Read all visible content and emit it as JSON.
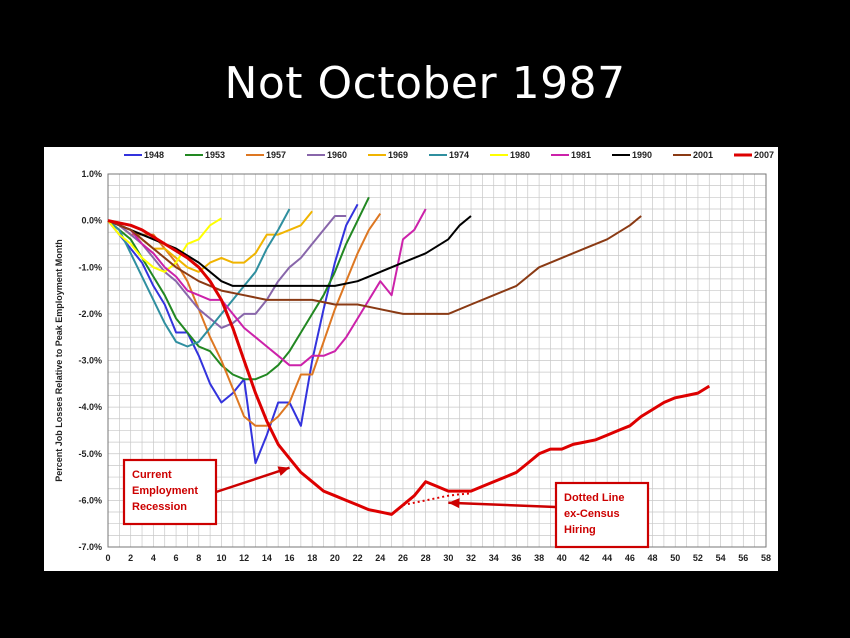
{
  "slide": {
    "title": "Not October 1987"
  },
  "chart_data": {
    "type": "line",
    "ylabel": "Percent Job Losses Relative to Peak Employment Month",
    "xlabel": "",
    "xlim": [
      0,
      58
    ],
    "ylim": [
      -7.0,
      1.0
    ],
    "x_ticks": [
      0,
      2,
      4,
      6,
      8,
      10,
      12,
      14,
      16,
      18,
      20,
      22,
      24,
      26,
      28,
      30,
      32,
      34,
      36,
      38,
      40,
      42,
      44,
      46,
      48,
      50,
      52,
      54,
      56,
      58
    ],
    "x_tick_labels": [
      "0",
      "2",
      "4",
      "6",
      "8",
      "10",
      "12",
      "14",
      "16",
      "18",
      "20",
      "22",
      "24",
      "26",
      "28",
      "30",
      "32",
      "34",
      "36",
      "38",
      "40",
      "42",
      "44",
      "46",
      "48",
      "50",
      "52",
      "54",
      "56",
      "58"
    ],
    "y_ticks": [
      1.0,
      0.0,
      -1.0,
      -2.0,
      -3.0,
      -4.0,
      -5.0,
      -6.0,
      -7.0
    ],
    "y_tick_labels": [
      "1.0%",
      "0.0%",
      "-1.0%",
      "-2.0%",
      "-3.0%",
      "-4.0%",
      "-5.0%",
      "-6.0%",
      "-7.0%"
    ],
    "grid": true,
    "legend_position": "top",
    "series": [
      {
        "name": "1948",
        "color": "#3333dd",
        "width": 2,
        "x": [
          0,
          1,
          2,
          3,
          4,
          5,
          6,
          7,
          8,
          9,
          10,
          11,
          12,
          13,
          14,
          15,
          16,
          17,
          18,
          19,
          20,
          21,
          22
        ],
        "y": [
          0,
          -0.3,
          -0.6,
          -0.9,
          -1.4,
          -1.8,
          -2.4,
          -2.4,
          -2.9,
          -3.5,
          -3.9,
          -3.7,
          -3.4,
          -5.2,
          -4.6,
          -3.9,
          -3.9,
          -4.4,
          -3.0,
          -1.9,
          -0.9,
          -0.1,
          0.35
        ]
      },
      {
        "name": "1953",
        "color": "#228822",
        "width": 2,
        "x": [
          0,
          1,
          2,
          3,
          4,
          5,
          6,
          7,
          8,
          9,
          10,
          11,
          12,
          13,
          14,
          15,
          16,
          17,
          18,
          19,
          20,
          21,
          22,
          23
        ],
        "y": [
          0,
          -0.2,
          -0.4,
          -0.8,
          -1.2,
          -1.6,
          -2.1,
          -2.4,
          -2.7,
          -2.8,
          -3.1,
          -3.3,
          -3.4,
          -3.4,
          -3.3,
          -3.1,
          -2.8,
          -2.4,
          -2.0,
          -1.6,
          -1.1,
          -0.5,
          0.0,
          0.5
        ]
      },
      {
        "name": "1957",
        "color": "#dd7722",
        "width": 2,
        "x": [
          0,
          1,
          2,
          3,
          4,
          5,
          6,
          7,
          8,
          9,
          10,
          11,
          12,
          13,
          14,
          15,
          16,
          17,
          18,
          19,
          20,
          21,
          22,
          23,
          24
        ],
        "y": [
          0,
          -0.1,
          -0.3,
          -0.3,
          -0.3,
          -0.6,
          -0.9,
          -1.3,
          -1.9,
          -2.5,
          -3.0,
          -3.6,
          -4.2,
          -4.4,
          -4.4,
          -4.2,
          -3.9,
          -3.3,
          -3.3,
          -2.6,
          -1.9,
          -1.3,
          -0.7,
          -0.2,
          0.15
        ]
      },
      {
        "name": "1960",
        "color": "#8866aa",
        "width": 2,
        "x": [
          0,
          1,
          2,
          3,
          4,
          5,
          6,
          7,
          8,
          9,
          10,
          11,
          12,
          13,
          14,
          15,
          16,
          17,
          18,
          19,
          20,
          21
        ],
        "y": [
          0,
          -0.1,
          -0.3,
          -0.5,
          -0.8,
          -1.1,
          -1.3,
          -1.6,
          -1.9,
          -2.1,
          -2.3,
          -2.2,
          -2.0,
          -2.0,
          -1.7,
          -1.3,
          -1.0,
          -0.8,
          -0.5,
          -0.2,
          0.1,
          0.1
        ]
      },
      {
        "name": "1969",
        "color": "#f0b400",
        "width": 2,
        "x": [
          0,
          1,
          2,
          3,
          4,
          5,
          6,
          7,
          8,
          9,
          10,
          11,
          12,
          13,
          14,
          15,
          16,
          17,
          18
        ],
        "y": [
          0,
          -0.1,
          -0.2,
          -0.4,
          -0.6,
          -0.6,
          -0.8,
          -1.0,
          -1.1,
          -0.9,
          -0.8,
          -0.9,
          -0.9,
          -0.7,
          -0.3,
          -0.3,
          -0.2,
          -0.1,
          0.2
        ]
      },
      {
        "name": "1974",
        "color": "#2f8f9f",
        "width": 2,
        "x": [
          0,
          1,
          2,
          3,
          4,
          5,
          6,
          7,
          8,
          9,
          10,
          11,
          12,
          13,
          14,
          15,
          16
        ],
        "y": [
          0,
          -0.2,
          -0.7,
          -1.2,
          -1.7,
          -2.2,
          -2.6,
          -2.7,
          -2.6,
          -2.3,
          -2.0,
          -1.7,
          -1.4,
          -1.1,
          -0.6,
          -0.2,
          0.25
        ]
      },
      {
        "name": "1980",
        "color": "#ffff00",
        "width": 2,
        "x": [
          0,
          1,
          2,
          3,
          4,
          5,
          6,
          7,
          8,
          9,
          10
        ],
        "y": [
          0,
          -0.3,
          -0.5,
          -0.8,
          -1.0,
          -1.1,
          -0.9,
          -0.5,
          -0.4,
          -0.1,
          0.05
        ]
      },
      {
        "name": "1981",
        "color": "#cc22aa",
        "width": 2,
        "x": [
          0,
          1,
          2,
          3,
          4,
          5,
          6,
          7,
          8,
          9,
          10,
          11,
          12,
          13,
          14,
          15,
          16,
          17,
          18,
          19,
          20,
          21,
          22,
          23,
          24,
          25,
          26,
          27,
          28
        ],
        "y": [
          0,
          -0.1,
          -0.2,
          -0.5,
          -0.7,
          -1.0,
          -1.2,
          -1.5,
          -1.6,
          -1.7,
          -1.7,
          -2.0,
          -2.3,
          -2.5,
          -2.7,
          -2.9,
          -3.1,
          -3.1,
          -2.9,
          -2.9,
          -2.8,
          -2.5,
          -2.1,
          -1.7,
          -1.3,
          -1.6,
          -0.4,
          -0.2,
          0.25
        ]
      },
      {
        "name": "1990",
        "color": "#000000",
        "width": 2,
        "x": [
          0,
          2,
          4,
          6,
          8,
          10,
          11,
          12,
          14,
          16,
          18,
          20,
          22,
          24,
          26,
          28,
          30,
          31,
          32
        ],
        "y": [
          0,
          -0.2,
          -0.4,
          -0.6,
          -0.9,
          -1.3,
          -1.4,
          -1.4,
          -1.4,
          -1.4,
          -1.4,
          -1.4,
          -1.3,
          -1.1,
          -0.9,
          -0.7,
          -0.4,
          -0.1,
          0.1
        ]
      },
      {
        "name": "2001",
        "color": "#8a3a14",
        "width": 2,
        "x": [
          0,
          2,
          4,
          6,
          8,
          10,
          12,
          14,
          16,
          18,
          20,
          22,
          24,
          26,
          28,
          30,
          32,
          34,
          36,
          38,
          40,
          42,
          44,
          46,
          47
        ],
        "y": [
          0,
          -0.2,
          -0.6,
          -1.0,
          -1.3,
          -1.5,
          -1.6,
          -1.7,
          -1.7,
          -1.7,
          -1.8,
          -1.8,
          -1.9,
          -2.0,
          -2.0,
          -2.0,
          -1.8,
          -1.6,
          -1.4,
          -1.0,
          -0.8,
          -0.6,
          -0.4,
          -0.1,
          0.1
        ]
      },
      {
        "name": "2007",
        "color": "#dd0000",
        "width": 3,
        "x": [
          0,
          1,
          2,
          3,
          4,
          5,
          6,
          7,
          8,
          9,
          10,
          11,
          12,
          13,
          14,
          15,
          16,
          17,
          18,
          19,
          20,
          21,
          22,
          23,
          24,
          25,
          26,
          27,
          28,
          29,
          30,
          31,
          32,
          33,
          34,
          35,
          36,
          37,
          38,
          39,
          40,
          41,
          42,
          43,
          44,
          45,
          46,
          47,
          48,
          49,
          50,
          51,
          52,
          53
        ],
        "y": [
          0,
          -0.05,
          -0.1,
          -0.2,
          -0.35,
          -0.5,
          -0.65,
          -0.8,
          -1.0,
          -1.3,
          -1.7,
          -2.3,
          -3.0,
          -3.7,
          -4.3,
          -4.8,
          -5.1,
          -5.4,
          -5.6,
          -5.8,
          -5.9,
          -6.0,
          -6.1,
          -6.2,
          -6.25,
          -6.3,
          -6.1,
          -5.9,
          -5.6,
          -5.7,
          -5.8,
          -5.8,
          -5.8,
          -5.7,
          -5.6,
          -5.5,
          -5.4,
          -5.2,
          -5.0,
          -4.9,
          -4.9,
          -4.8,
          -4.75,
          -4.7,
          -4.6,
          -4.5,
          -4.4,
          -4.2,
          -4.05,
          -3.9,
          -3.8,
          -3.75,
          -3.7,
          -3.55
        ]
      },
      {
        "name": "",
        "color": "#dd0000",
        "width": 2,
        "dashed": true,
        "x": [
          26,
          27,
          28,
          29,
          30,
          31,
          32
        ],
        "y": [
          -6.1,
          -6.05,
          -6.0,
          -5.95,
          -5.9,
          -5.87,
          -5.85
        ]
      }
    ],
    "annotations": [
      {
        "id": "current",
        "lines": [
          "Current",
          "Employment",
          "Recession"
        ],
        "arrow_to": [
          16,
          -5.3
        ]
      },
      {
        "id": "dotted",
        "lines": [
          "Dotted Line",
          "ex-Census",
          "Hiring"
        ],
        "arrow_to": [
          30,
          -6.05
        ]
      }
    ]
  }
}
